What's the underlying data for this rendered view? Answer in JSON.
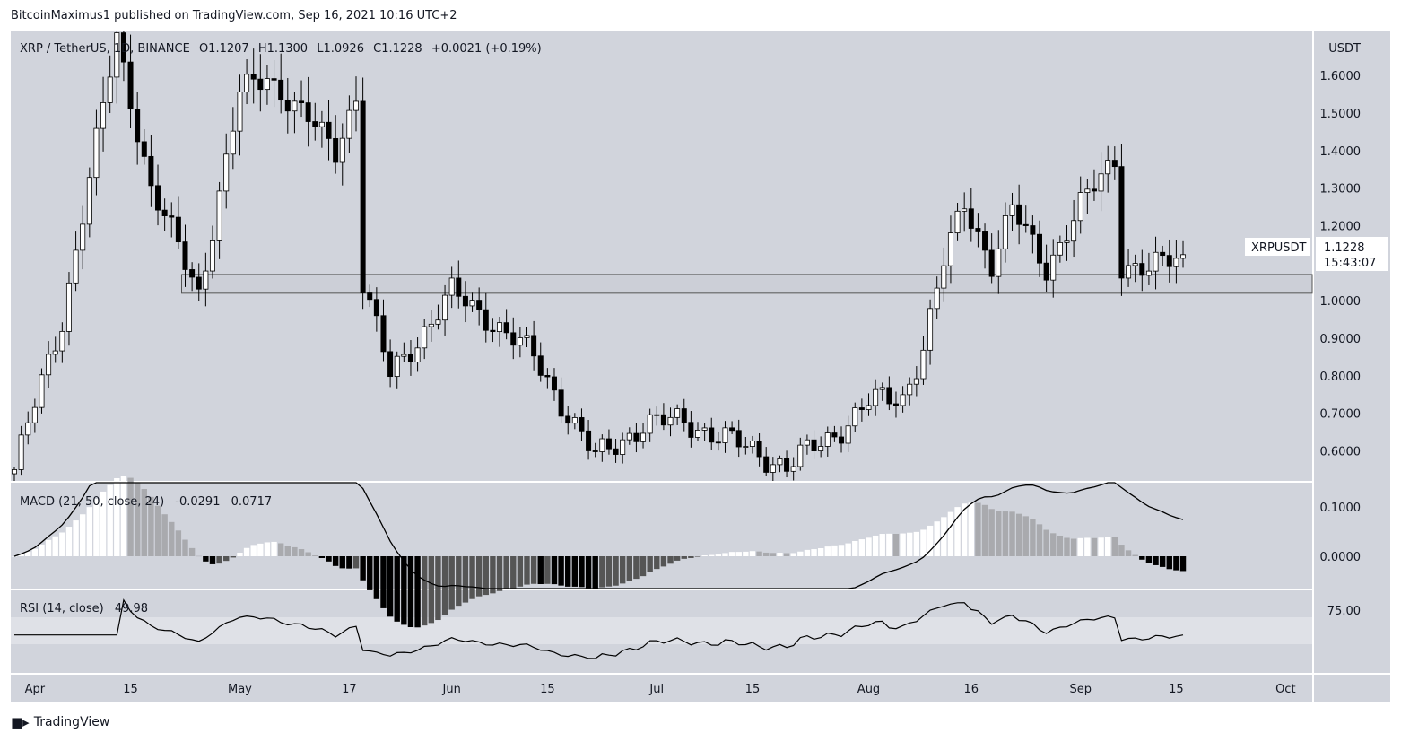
{
  "header": {
    "published_line": "BitcoinMaximus1 published on TradingView.com, Sep 16, 2021 10:16 UTC+2"
  },
  "legend": {
    "symbol": "XRP / TetherUS, 1D, BINANCE",
    "o_label": "O",
    "o_value": "1.1207",
    "h_label": "H",
    "h_value": "1.1300",
    "l_label": "L",
    "l_value": "1.0926",
    "c_label": "C",
    "c_value": "1.1228",
    "change": "+0.0021 (+0.19%)"
  },
  "price_tag": {
    "symbol": "XRPUSDT",
    "price": "1.1228",
    "countdown": "15:43:07"
  },
  "axis": {
    "currency": "USDT",
    "price_ticks": [
      "1.6000",
      "1.5000",
      "1.4000",
      "1.3000",
      "1.2000",
      "1.0000",
      "0.9000",
      "0.8000",
      "0.7000",
      "0.6000"
    ],
    "macd_ticks": [
      "0.1000",
      "0.0000"
    ],
    "rsi_ticks": [
      "75.00"
    ],
    "time_ticks": [
      "Apr",
      "15",
      "May",
      "17",
      "Jun",
      "15",
      "Jul",
      "15",
      "Aug",
      "16",
      "Sep",
      "15",
      "Oct"
    ]
  },
  "macd_legend": {
    "label": "MACD (21, 50, close, 24)",
    "v1": "-0.0291",
    "v2": "0.0717"
  },
  "rsi_legend": {
    "label": "RSI (14, close)",
    "value": "49.98"
  },
  "footer": {
    "brand": "TradingView"
  },
  "colors": {
    "background": "#d1d4dc",
    "up": "#ffffff",
    "down": "#000000",
    "pane_bg": "#ffffff",
    "rsi_band": "#dfe1e7"
  },
  "chart_data": [
    {
      "type": "candlestick",
      "symbol": "XRPUSDT",
      "timeframe": "1D",
      "x_start": "2021-03-29",
      "x_end": "2021-09-16",
      "ylim": [
        0.52,
        1.72
      ],
      "key_points": [
        {
          "date": "2021-03-29",
          "close": 0.55
        },
        {
          "date": "2021-04-05",
          "close": 0.95
        },
        {
          "date": "2021-04-13",
          "close": 1.7
        },
        {
          "date": "2021-04-18",
          "close": 1.3
        },
        {
          "date": "2021-04-25",
          "close": 1.02
        },
        {
          "date": "2021-05-01",
          "close": 1.55
        },
        {
          "date": "2021-05-05",
          "close": 1.6
        },
        {
          "date": "2021-05-15",
          "close": 1.4
        },
        {
          "date": "2021-05-18",
          "close": 1.55
        },
        {
          "date": "2021-05-19",
          "close": 1.05
        },
        {
          "date": "2021-05-23",
          "close": 0.8
        },
        {
          "date": "2021-06-01",
          "close": 1.02
        },
        {
          "date": "2021-06-06",
          "close": 0.96
        },
        {
          "date": "2021-06-13",
          "close": 0.85
        },
        {
          "date": "2021-06-22",
          "close": 0.58
        },
        {
          "date": "2021-06-29",
          "close": 0.67
        },
        {
          "date": "2021-07-05",
          "close": 0.68
        },
        {
          "date": "2021-07-20",
          "close": 0.56
        },
        {
          "date": "2021-07-26",
          "close": 0.63
        },
        {
          "date": "2021-08-01",
          "close": 0.73
        },
        {
          "date": "2021-08-06",
          "close": 0.74
        },
        {
          "date": "2021-08-09",
          "close": 0.88
        },
        {
          "date": "2021-08-12",
          "close": 1.1
        },
        {
          "date": "2021-08-15",
          "close": 1.26
        },
        {
          "date": "2021-08-19",
          "close": 1.1
        },
        {
          "date": "2021-08-22",
          "close": 1.24
        },
        {
          "date": "2021-08-27",
          "close": 1.09
        },
        {
          "date": "2021-09-01",
          "close": 1.25
        },
        {
          "date": "2021-09-06",
          "close": 1.38
        },
        {
          "date": "2021-09-07",
          "close": 1.1
        },
        {
          "date": "2021-09-11",
          "close": 1.08
        },
        {
          "date": "2021-09-16",
          "close": 1.1228
        }
      ],
      "support_zone": [
        1.02,
        1.07
      ]
    },
    {
      "type": "line",
      "name": "MACD (21, 50, close, 24)",
      "value": -0.0291,
      "signal": 0.0717
    },
    {
      "type": "line",
      "name": "RSI (14, close)",
      "value": 49.98,
      "reference_levels": [
        75,
        25
      ]
    }
  ]
}
